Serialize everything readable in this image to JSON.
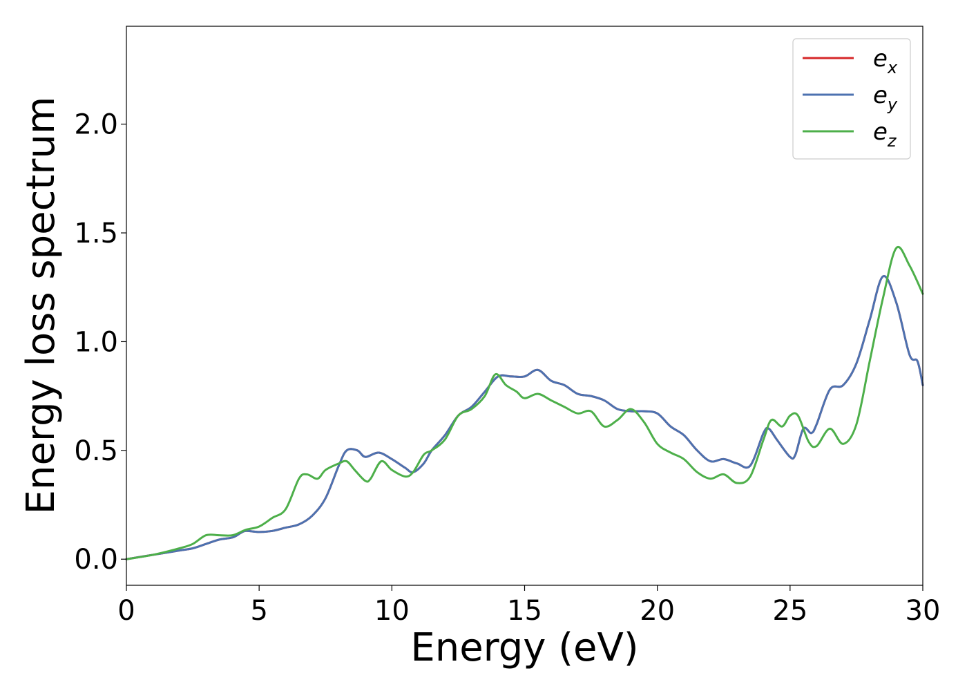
{
  "chart_data": {
    "type": "line",
    "title": "",
    "xlabel": "Energy (eV)",
    "ylabel": "Energy loss spectrum",
    "xlim": [
      0,
      30
    ],
    "ylim": [
      -0.12,
      2.45
    ],
    "x_ticks": [
      "0",
      "5",
      "10",
      "15",
      "20",
      "25",
      "30"
    ],
    "y_ticks": [
      "0.0",
      "0.5",
      "1.0",
      "1.5",
      "2.0"
    ],
    "x_tick_values": [
      0,
      5,
      10,
      15,
      20,
      25,
      30
    ],
    "y_tick_values": [
      0,
      0.5,
      1.0,
      1.5,
      2.0
    ],
    "grid": false,
    "legend": "top-right",
    "series": [
      {
        "name": "e",
        "subscript": "x",
        "color": "#d62728",
        "points": [
          [
            0,
            0
          ],
          [
            1,
            0.02
          ],
          [
            2,
            0.04
          ],
          [
            2.5,
            0.05
          ],
          [
            3,
            0.07
          ],
          [
            3.5,
            0.09
          ],
          [
            4,
            0.1
          ],
          [
            4.3,
            0.12
          ],
          [
            4.5,
            0.13
          ],
          [
            5,
            0.125
          ],
          [
            5.5,
            0.13
          ],
          [
            6,
            0.145
          ],
          [
            6.5,
            0.16
          ],
          [
            7,
            0.2
          ],
          [
            7.5,
            0.28
          ],
          [
            8,
            0.43
          ],
          [
            8.3,
            0.5
          ],
          [
            8.7,
            0.5
          ],
          [
            9,
            0.47
          ],
          [
            9.5,
            0.49
          ],
          [
            10,
            0.46
          ],
          [
            10.5,
            0.42
          ],
          [
            10.8,
            0.4
          ],
          [
            11.2,
            0.44
          ],
          [
            11.5,
            0.5
          ],
          [
            12,
            0.57
          ],
          [
            12.5,
            0.66
          ],
          [
            13,
            0.7
          ],
          [
            13.5,
            0.77
          ],
          [
            14,
            0.84
          ],
          [
            14.5,
            0.84
          ],
          [
            15,
            0.84
          ],
          [
            15.5,
            0.87
          ],
          [
            16,
            0.82
          ],
          [
            16.5,
            0.8
          ],
          [
            17,
            0.76
          ],
          [
            17.5,
            0.75
          ],
          [
            18,
            0.73
          ],
          [
            18.5,
            0.69
          ],
          [
            19,
            0.68
          ],
          [
            19.5,
            0.68
          ],
          [
            20,
            0.67
          ],
          [
            20.5,
            0.61
          ],
          [
            21,
            0.57
          ],
          [
            21.5,
            0.5
          ],
          [
            22,
            0.45
          ],
          [
            22.5,
            0.46
          ],
          [
            23,
            0.44
          ],
          [
            23.5,
            0.43
          ],
          [
            24,
            0.58
          ],
          [
            24.2,
            0.6
          ],
          [
            24.5,
            0.55
          ],
          [
            25,
            0.47
          ],
          [
            25.2,
            0.48
          ],
          [
            25.5,
            0.6
          ],
          [
            25.8,
            0.58
          ],
          [
            26,
            0.62
          ],
          [
            26.5,
            0.78
          ],
          [
            27,
            0.8
          ],
          [
            27.5,
            0.9
          ],
          [
            28,
            1.1
          ],
          [
            28.5,
            1.3
          ],
          [
            29,
            1.18
          ],
          [
            29.5,
            0.94
          ],
          [
            29.8,
            0.91
          ],
          [
            30,
            0.8
          ]
        ]
      },
      {
        "name": "e",
        "subscript": "y",
        "color": "#4c72b0",
        "points": [
          [
            0,
            0
          ],
          [
            1,
            0.02
          ],
          [
            2,
            0.04
          ],
          [
            2.5,
            0.05
          ],
          [
            3,
            0.07
          ],
          [
            3.5,
            0.09
          ],
          [
            4,
            0.1
          ],
          [
            4.3,
            0.12
          ],
          [
            4.5,
            0.13
          ],
          [
            5,
            0.125
          ],
          [
            5.5,
            0.13
          ],
          [
            6,
            0.145
          ],
          [
            6.5,
            0.16
          ],
          [
            7,
            0.2
          ],
          [
            7.5,
            0.28
          ],
          [
            8,
            0.43
          ],
          [
            8.3,
            0.5
          ],
          [
            8.7,
            0.5
          ],
          [
            9,
            0.47
          ],
          [
            9.5,
            0.49
          ],
          [
            10,
            0.46
          ],
          [
            10.5,
            0.42
          ],
          [
            10.8,
            0.4
          ],
          [
            11.2,
            0.44
          ],
          [
            11.5,
            0.5
          ],
          [
            12,
            0.57
          ],
          [
            12.5,
            0.66
          ],
          [
            13,
            0.7
          ],
          [
            13.5,
            0.77
          ],
          [
            14,
            0.84
          ],
          [
            14.5,
            0.84
          ],
          [
            15,
            0.84
          ],
          [
            15.5,
            0.87
          ],
          [
            16,
            0.82
          ],
          [
            16.5,
            0.8
          ],
          [
            17,
            0.76
          ],
          [
            17.5,
            0.75
          ],
          [
            18,
            0.73
          ],
          [
            18.5,
            0.69
          ],
          [
            19,
            0.68
          ],
          [
            19.5,
            0.68
          ],
          [
            20,
            0.67
          ],
          [
            20.5,
            0.61
          ],
          [
            21,
            0.57
          ],
          [
            21.5,
            0.5
          ],
          [
            22,
            0.45
          ],
          [
            22.5,
            0.46
          ],
          [
            23,
            0.44
          ],
          [
            23.5,
            0.43
          ],
          [
            24,
            0.58
          ],
          [
            24.2,
            0.6
          ],
          [
            24.5,
            0.55
          ],
          [
            25,
            0.47
          ],
          [
            25.2,
            0.48
          ],
          [
            25.5,
            0.6
          ],
          [
            25.8,
            0.58
          ],
          [
            26,
            0.62
          ],
          [
            26.5,
            0.78
          ],
          [
            27,
            0.8
          ],
          [
            27.5,
            0.9
          ],
          [
            28,
            1.1
          ],
          [
            28.5,
            1.3
          ],
          [
            29,
            1.18
          ],
          [
            29.5,
            0.94
          ],
          [
            29.8,
            0.91
          ],
          [
            30,
            0.8
          ]
        ]
      },
      {
        "name": "e",
        "subscript": "z",
        "color": "#4daf4a",
        "points": [
          [
            0,
            0
          ],
          [
            1,
            0.02
          ],
          [
            2,
            0.05
          ],
          [
            2.5,
            0.07
          ],
          [
            3,
            0.11
          ],
          [
            3.5,
            0.11
          ],
          [
            4,
            0.11
          ],
          [
            4.5,
            0.135
          ],
          [
            5,
            0.15
          ],
          [
            5.5,
            0.19
          ],
          [
            6,
            0.23
          ],
          [
            6.5,
            0.37
          ],
          [
            6.8,
            0.39
          ],
          [
            7.2,
            0.37
          ],
          [
            7.5,
            0.41
          ],
          [
            8,
            0.44
          ],
          [
            8.3,
            0.45
          ],
          [
            8.6,
            0.41
          ],
          [
            9,
            0.36
          ],
          [
            9.2,
            0.37
          ],
          [
            9.6,
            0.45
          ],
          [
            10,
            0.41
          ],
          [
            10.5,
            0.38
          ],
          [
            10.8,
            0.4
          ],
          [
            11.2,
            0.48
          ],
          [
            11.5,
            0.5
          ],
          [
            12,
            0.55
          ],
          [
            12.5,
            0.66
          ],
          [
            13,
            0.69
          ],
          [
            13.5,
            0.75
          ],
          [
            13.9,
            0.85
          ],
          [
            14.3,
            0.8
          ],
          [
            14.7,
            0.77
          ],
          [
            15,
            0.74
          ],
          [
            15.5,
            0.76
          ],
          [
            16,
            0.73
          ],
          [
            16.5,
            0.7
          ],
          [
            17,
            0.67
          ],
          [
            17.5,
            0.68
          ],
          [
            18,
            0.61
          ],
          [
            18.5,
            0.64
          ],
          [
            19,
            0.69
          ],
          [
            19.5,
            0.63
          ],
          [
            20,
            0.53
          ],
          [
            20.5,
            0.49
          ],
          [
            21,
            0.46
          ],
          [
            21.5,
            0.4
          ],
          [
            22,
            0.37
          ],
          [
            22.5,
            0.39
          ],
          [
            23,
            0.35
          ],
          [
            23.5,
            0.38
          ],
          [
            24,
            0.55
          ],
          [
            24.3,
            0.64
          ],
          [
            24.7,
            0.61
          ],
          [
            25,
            0.66
          ],
          [
            25.3,
            0.66
          ],
          [
            25.7,
            0.54
          ],
          [
            26,
            0.52
          ],
          [
            26.5,
            0.6
          ],
          [
            27,
            0.53
          ],
          [
            27.5,
            0.62
          ],
          [
            28,
            0.91
          ],
          [
            28.5,
            1.2
          ],
          [
            29,
            1.43
          ],
          [
            29.5,
            1.35
          ],
          [
            30,
            1.22
          ]
        ]
      }
    ]
  }
}
